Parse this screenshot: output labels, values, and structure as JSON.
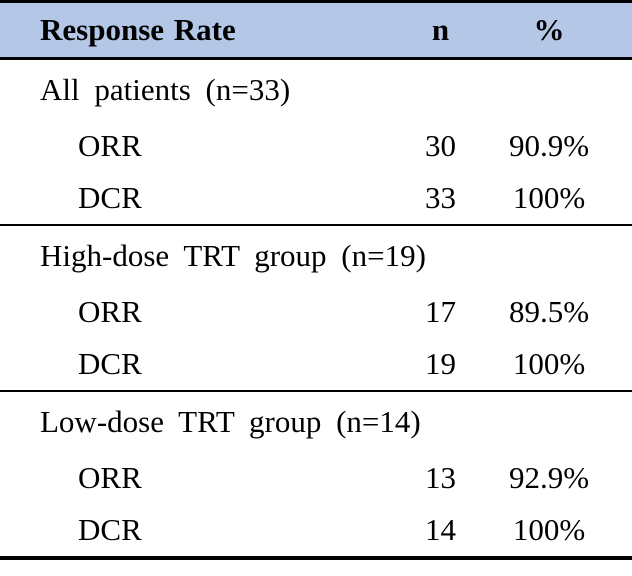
{
  "table": {
    "header": {
      "label": "Response Rate",
      "n": "n",
      "pct": "%"
    },
    "sections": [
      {
        "title": "All patients (n=33)",
        "rows": [
          {
            "label": "ORR",
            "n": "30",
            "pct": "90.9%"
          },
          {
            "label": "DCR",
            "n": "33",
            "pct": "100%"
          }
        ]
      },
      {
        "title": "High-dose TRT group (n=19)",
        "rows": [
          {
            "label": "ORR",
            "n": "17",
            "pct": "89.5%"
          },
          {
            "label": "DCR",
            "n": "19",
            "pct": "100%"
          }
        ]
      },
      {
        "title": "Low-dose TRT group (n=14)",
        "rows": [
          {
            "label": "ORR",
            "n": "13",
            "pct": "92.9%"
          },
          {
            "label": "DCR",
            "n": "14",
            "pct": "100%"
          }
        ]
      }
    ],
    "colors": {
      "header_bg": "#B4C7E7",
      "border": "#000000",
      "text": "#000000"
    }
  }
}
